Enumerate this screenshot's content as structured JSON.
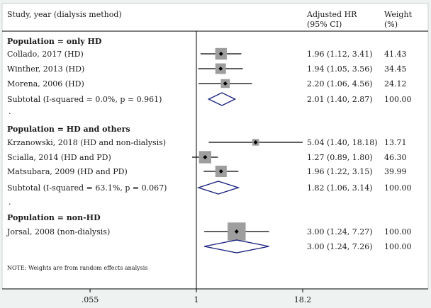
{
  "colors": {
    "background": "#eef3f2",
    "plot_area": "#ffffff",
    "diamond": "#1a237e",
    "box": "#9e9e9e",
    "line": "#000000"
  },
  "chart_data": {
    "type": "forest",
    "scale": "log",
    "x_ticks": [
      {
        "value": 0.055,
        "label": ".055"
      },
      {
        "value": 1,
        "label": "1"
      },
      {
        "value": 18.2,
        "label": "18.2"
      }
    ],
    "headers": {
      "study": "Study, year (dialysis method)",
      "hr_line1": "Adjusted HR",
      "hr_line2": "(95% CI)",
      "weight_line1": "Weight",
      "weight_line2": "(%)"
    },
    "groups": [
      {
        "title": "Population = only HD",
        "studies": [
          {
            "label": "Collado, 2017 (HD)",
            "hr": 1.96,
            "lo": 1.12,
            "hi": 3.41,
            "ci_text": "1.96 (1.12, 3.41)",
            "weight": "41.43"
          },
          {
            "label": "Winther, 2013 (HD)",
            "hr": 1.94,
            "lo": 1.05,
            "hi": 3.56,
            "ci_text": "1.94 (1.05, 3.56)",
            "weight": "34.45"
          },
          {
            "label": "Morena, 2006 (HD)",
            "hr": 2.2,
            "lo": 1.06,
            "hi": 4.56,
            "ci_text": "2.20 (1.06, 4.56)",
            "weight": "24.12"
          }
        ],
        "subtotal": {
          "label": "Subtotal  (I-squared = 0.0%, p = 0.961)",
          "hr": 2.01,
          "lo": 1.4,
          "hi": 2.87,
          "ci_text": "2.01 (1.40, 2.87)",
          "weight": "100.00"
        }
      },
      {
        "title": "Population = HD and others",
        "studies": [
          {
            "label": "Krzanowski, 2018 (HD and non-dialysis)",
            "hr": 5.04,
            "lo": 1.4,
            "hi": 18.18,
            "ci_text": "5.04 (1.40, 18.18)",
            "weight": "13.71"
          },
          {
            "label": "Scialla, 2014 (HD and PD)",
            "hr": 1.27,
            "lo": 0.89,
            "hi": 1.8,
            "ci_text": "1.27 (0.89, 1.80)",
            "weight": "46.30"
          },
          {
            "label": "Matsubara, 2009 (HD and PD)",
            "hr": 1.96,
            "lo": 1.22,
            "hi": 3.15,
            "ci_text": "1.96 (1.22, 3.15)",
            "weight": "39.99"
          }
        ],
        "subtotal": {
          "label": "Subtotal  (I-squared = 63.1%, p = 0.067)",
          "hr": 1.82,
          "lo": 1.06,
          "hi": 3.14,
          "ci_text": "1.82 (1.06, 3.14)",
          "weight": "100.00"
        }
      },
      {
        "title": "Population = non-HD",
        "studies": [
          {
            "label": "Jorsal, 2008 (non-dialysis)",
            "hr": 3.0,
            "lo": 1.24,
            "hi": 7.27,
            "ci_text": "3.00 (1.24, 7.27)",
            "weight": "100.00"
          }
        ],
        "subtotal": {
          "label": "",
          "hr": 3.0,
          "lo": 1.24,
          "hi": 7.26,
          "ci_text": "3.00 (1.24, 7.26)",
          "weight": "100.00"
        }
      }
    ],
    "separator": ".",
    "note": "NOTE: Weights are from random effects analysis"
  }
}
